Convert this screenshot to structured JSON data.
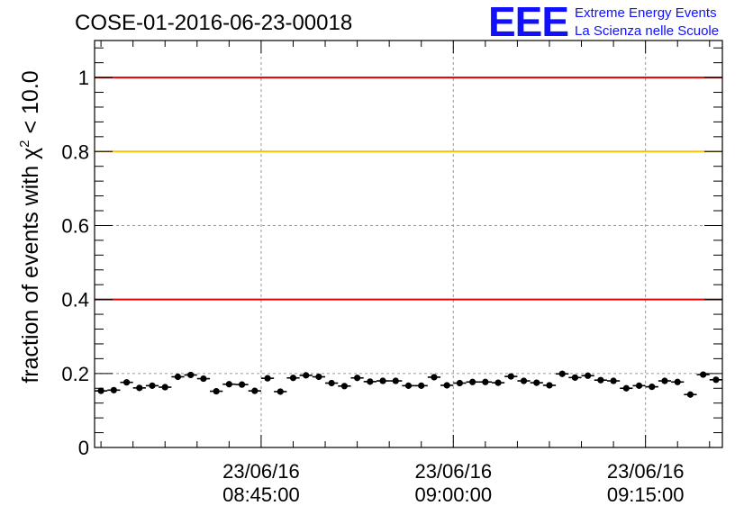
{
  "chart_data": {
    "type": "scatter",
    "title": "COSE-01-2016-06-23-00018",
    "logo": {
      "mark": "EEE",
      "line1": "Extreme Energy Events",
      "line2": "La Scienza nelle Scuole"
    },
    "ylabel_prefix": "fraction of events with ",
    "ylabel_symbol": "χ",
    "ylabel_exp": "2",
    "ylabel_suffix": " < 10.0",
    "ylim": [
      0,
      1.1
    ],
    "yticks": [
      0,
      0.2,
      0.4,
      0.6,
      0.8,
      1
    ],
    "ytick_labels": [
      "0",
      "0.2",
      "0.4",
      "0.6",
      "0.8",
      "1"
    ],
    "xlim": [
      "23/06/16 08:32:00",
      "23/06/16 09:21:00"
    ],
    "xticks": [
      {
        "date": "23/06/16",
        "time": "08:45:00"
      },
      {
        "date": "23/06/16",
        "time": "09:00:00"
      },
      {
        "date": "23/06/16",
        "time": "09:15:00"
      }
    ],
    "grid": true,
    "reference_lines": [
      {
        "y": 1.0,
        "color": "#e00000"
      },
      {
        "y": 0.8,
        "color": "#ffc000"
      },
      {
        "y": 0.4,
        "color": "#e00000"
      }
    ],
    "marker_color": "#000000",
    "series": [
      {
        "values": [
          0.153,
          0.155,
          0.176,
          0.161,
          0.167,
          0.163,
          0.191,
          0.196,
          0.186,
          0.152,
          0.171,
          0.17,
          0.153,
          0.187,
          0.151,
          0.188,
          0.195,
          0.191,
          0.174,
          0.166,
          0.188,
          0.178,
          0.18,
          0.18,
          0.167,
          0.167,
          0.19,
          0.168,
          0.174,
          0.177,
          0.177,
          0.175,
          0.192,
          0.18,
          0.175,
          0.168,
          0.199,
          0.189,
          0.194,
          0.182,
          0.18,
          0.16,
          0.167,
          0.164,
          0.18,
          0.177,
          0.143,
          0.197,
          0.183
        ],
        "x": [
          "08:32:30",
          "08:33:30",
          "08:34:30",
          "08:35:30",
          "08:36:30",
          "08:37:30",
          "08:38:30",
          "08:39:30",
          "08:40:30",
          "08:41:30",
          "08:42:30",
          "08:43:30",
          "08:44:30",
          "08:45:30",
          "08:46:30",
          "08:47:30",
          "08:48:30",
          "08:49:30",
          "08:50:30",
          "08:51:30",
          "08:52:30",
          "08:53:30",
          "08:54:30",
          "08:55:30",
          "08:56:30",
          "08:57:30",
          "08:58:30",
          "08:59:30",
          "09:00:30",
          "09:01:30",
          "09:02:30",
          "09:03:30",
          "09:04:30",
          "09:05:30",
          "09:06:30",
          "09:07:30",
          "09:08:30",
          "09:09:30",
          "09:10:30",
          "09:11:30",
          "09:12:30",
          "09:13:30",
          "09:14:30",
          "09:15:30",
          "09:16:30",
          "09:17:30",
          "09:18:30",
          "09:19:30",
          "09:20:30"
        ],
        "x_error_minutes": 0.5,
        "y_error": 0.008
      }
    ]
  }
}
